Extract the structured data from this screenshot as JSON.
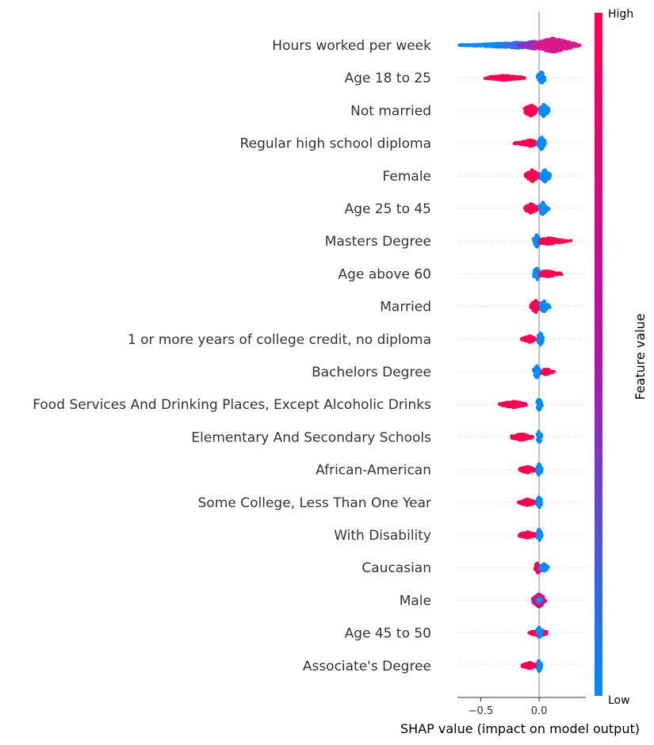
{
  "chart_data": {
    "type": "scatter",
    "subtype": "shap-beeswarm-summary",
    "xlabel": "SHAP value (impact on model output)",
    "xlim": [
      -0.7,
      0.4
    ],
    "xticks": [
      {
        "value": -0.5,
        "label": "−0.5"
      },
      {
        "value": 0.0,
        "label": "0.0"
      }
    ],
    "colorbar": {
      "label": "Feature value",
      "high_label": "High",
      "low_label": "Low",
      "high_color": "#ff0052",
      "mid_color": "#b312a8",
      "low_color": "#008bfb"
    },
    "features": [
      {
        "name": "Hours worked per week",
        "min": -0.72,
        "max": 0.35,
        "groups": [
          {
            "color": "#008bfb",
            "from": -0.72,
            "to": -0.15,
            "peak": -0.3,
            "width": 5
          },
          {
            "color": "#3a6fe8",
            "from": -0.35,
            "to": -0.05,
            "peak": -0.18,
            "width": 8
          },
          {
            "color": "#8a32c4",
            "from": -0.2,
            "to": 0.05,
            "peak": -0.05,
            "width": 10
          },
          {
            "color": "#d81a8a",
            "from": -0.05,
            "to": 0.35,
            "peak": 0.12,
            "width": 18
          }
        ]
      },
      {
        "name": "Age 18 to 25",
        "min": -0.47,
        "max": 0.06,
        "groups": [
          {
            "color": "#ff0052",
            "from": -0.47,
            "to": -0.12,
            "peak": -0.3,
            "width": 6
          },
          {
            "color": "#008bfb",
            "from": -0.02,
            "to": 0.06,
            "peak": 0.02,
            "width": 16
          }
        ]
      },
      {
        "name": "Not married",
        "min": -0.15,
        "max": 0.1,
        "groups": [
          {
            "color": "#ff0052",
            "from": -0.15,
            "to": 0.0,
            "peak": -0.07,
            "width": 14
          },
          {
            "color": "#008bfb",
            "from": 0.0,
            "to": 0.1,
            "peak": 0.04,
            "width": 16
          }
        ]
      },
      {
        "name": "Regular high school diploma",
        "min": -0.22,
        "max": 0.06,
        "groups": [
          {
            "color": "#ff0052",
            "from": -0.22,
            "to": -0.02,
            "peak": -0.08,
            "width": 8
          },
          {
            "color": "#008bfb",
            "from": -0.02,
            "to": 0.06,
            "peak": 0.02,
            "width": 16
          }
        ]
      },
      {
        "name": "Female",
        "min": -0.12,
        "max": 0.1,
        "groups": [
          {
            "color": "#ff0052",
            "from": -0.12,
            "to": 0.0,
            "peak": -0.06,
            "width": 16
          },
          {
            "color": "#008bfb",
            "from": 0.0,
            "to": 0.1,
            "peak": 0.05,
            "width": 16
          }
        ]
      },
      {
        "name": "Age 25 to 45",
        "min": -0.13,
        "max": 0.09,
        "groups": [
          {
            "color": "#ff0052",
            "from": -0.13,
            "to": 0.0,
            "peak": -0.07,
            "width": 12
          },
          {
            "color": "#008bfb",
            "from": 0.0,
            "to": 0.09,
            "peak": 0.03,
            "width": 16
          }
        ]
      },
      {
        "name": "Masters Degree",
        "min": -0.05,
        "max": 0.28,
        "groups": [
          {
            "color": "#008bfb",
            "from": -0.05,
            "to": 0.02,
            "peak": -0.02,
            "width": 16
          },
          {
            "color": "#ff0052",
            "from": 0.0,
            "to": 0.28,
            "peak": 0.08,
            "width": 8
          }
        ]
      },
      {
        "name": "Age above 60",
        "min": -0.05,
        "max": 0.2,
        "groups": [
          {
            "color": "#008bfb",
            "from": -0.05,
            "to": 0.02,
            "peak": -0.02,
            "width": 16
          },
          {
            "color": "#ff0052",
            "from": 0.0,
            "to": 0.2,
            "peak": 0.07,
            "width": 8
          }
        ]
      },
      {
        "name": "Married",
        "min": -0.08,
        "max": 0.1,
        "groups": [
          {
            "color": "#ff0052",
            "from": -0.08,
            "to": 0.02,
            "peak": -0.03,
            "width": 16
          },
          {
            "color": "#008bfb",
            "from": 0.0,
            "to": 0.1,
            "peak": 0.04,
            "width": 14
          }
        ]
      },
      {
        "name": "1 or more years of college credit, no diploma",
        "min": -0.16,
        "max": 0.04,
        "groups": [
          {
            "color": "#ff0052",
            "from": -0.16,
            "to": -0.02,
            "peak": -0.08,
            "width": 8
          },
          {
            "color": "#008bfb",
            "from": -0.02,
            "to": 0.04,
            "peak": 0.01,
            "width": 16
          }
        ]
      },
      {
        "name": "Bachelors Degree",
        "min": -0.05,
        "max": 0.13,
        "groups": [
          {
            "color": "#008bfb",
            "from": -0.05,
            "to": 0.02,
            "peak": -0.02,
            "width": 16
          },
          {
            "color": "#ff0052",
            "from": 0.02,
            "to": 0.13,
            "peak": 0.06,
            "width": 8
          }
        ]
      },
      {
        "name": "Food Services And Drinking Places, Except Alcoholic Drinks",
        "min": -0.35,
        "max": 0.03,
        "groups": [
          {
            "color": "#ff0052",
            "from": -0.35,
            "to": -0.1,
            "peak": -0.22,
            "width": 8
          },
          {
            "color": "#008bfb",
            "from": -0.02,
            "to": 0.03,
            "peak": 0.0,
            "width": 16
          }
        ]
      },
      {
        "name": "Elementary And Secondary Schools",
        "min": -0.25,
        "max": 0.03,
        "groups": [
          {
            "color": "#ff0052",
            "from": -0.25,
            "to": -0.05,
            "peak": -0.15,
            "width": 8
          },
          {
            "color": "#008bfb",
            "from": -0.02,
            "to": 0.03,
            "peak": 0.0,
            "width": 16
          }
        ]
      },
      {
        "name": "African-American",
        "min": -0.18,
        "max": 0.03,
        "groups": [
          {
            "color": "#ff0052",
            "from": -0.18,
            "to": -0.02,
            "peak": -0.1,
            "width": 8
          },
          {
            "color": "#008bfb",
            "from": -0.02,
            "to": 0.03,
            "peak": 0.0,
            "width": 16
          }
        ]
      },
      {
        "name": "Some College, Less Than One Year",
        "min": -0.18,
        "max": 0.03,
        "groups": [
          {
            "color": "#ff0052",
            "from": -0.18,
            "to": -0.02,
            "peak": -0.1,
            "width": 8
          },
          {
            "color": "#008bfb",
            "from": -0.02,
            "to": 0.03,
            "peak": 0.0,
            "width": 16
          }
        ]
      },
      {
        "name": "With Disability",
        "min": -0.18,
        "max": 0.03,
        "groups": [
          {
            "color": "#ff0052",
            "from": -0.18,
            "to": -0.02,
            "peak": -0.1,
            "width": 8
          },
          {
            "color": "#008bfb",
            "from": -0.02,
            "to": 0.03,
            "peak": 0.0,
            "width": 16
          }
        ]
      },
      {
        "name": "Caucasian",
        "min": -0.04,
        "max": 0.08,
        "groups": [
          {
            "color": "#ff0052",
            "from": -0.04,
            "to": 0.03,
            "peak": -0.01,
            "width": 14
          },
          {
            "color": "#008bfb",
            "from": 0.0,
            "to": 0.08,
            "peak": 0.04,
            "width": 10
          }
        ]
      },
      {
        "name": "Male",
        "min": -0.06,
        "max": 0.06,
        "groups": [
          {
            "color": "#c0148f",
            "from": -0.06,
            "to": 0.06,
            "peak": 0.0,
            "width": 18
          },
          {
            "color": "#ff0052",
            "from": -0.04,
            "to": 0.05,
            "peak": 0.0,
            "width": 10
          },
          {
            "color": "#008bfb",
            "from": -0.02,
            "to": 0.02,
            "peak": 0.0,
            "width": 6
          }
        ]
      },
      {
        "name": "Age 45 to 50",
        "min": -0.1,
        "max": 0.07,
        "groups": [
          {
            "color": "#ff0052",
            "from": -0.1,
            "to": 0.07,
            "peak": 0.0,
            "width": 8
          },
          {
            "color": "#008bfb",
            "from": -0.02,
            "to": 0.03,
            "peak": 0.0,
            "width": 16
          }
        ]
      },
      {
        "name": "Associate's Degree",
        "min": -0.16,
        "max": 0.03,
        "groups": [
          {
            "color": "#ff0052",
            "from": -0.16,
            "to": -0.02,
            "peak": -0.08,
            "width": 8
          },
          {
            "color": "#008bfb",
            "from": -0.02,
            "to": 0.03,
            "peak": 0.0,
            "width": 16
          }
        ]
      }
    ]
  }
}
